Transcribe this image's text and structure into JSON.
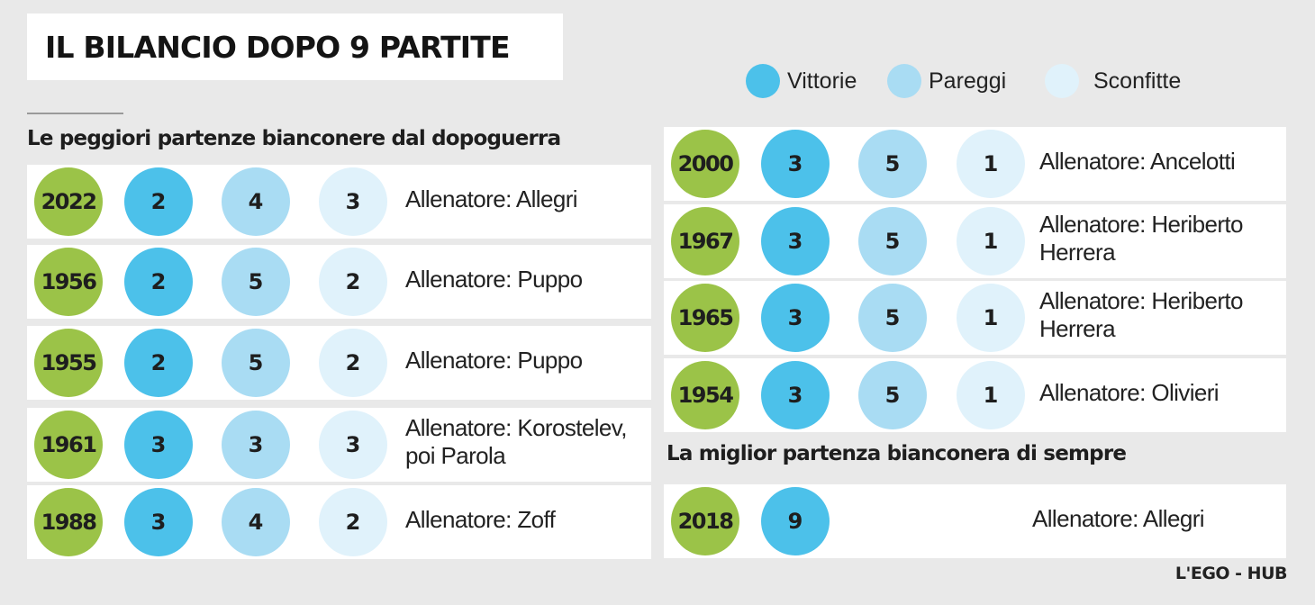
{
  "title": "IL BILANCIO DOPO 9 PARTITE",
  "credit": "L'EGO - HUB",
  "colors": {
    "wins": "#4cc1ea",
    "draws": "#a9dcf3",
    "losses": "#e0f2fb",
    "year": "#9bc348",
    "row": "#ffffff",
    "background": "#e9e9e9"
  },
  "legend": {
    "wins": "Vittorie",
    "draws": "Pareggi",
    "losses": "Sconfitte"
  },
  "sections": {
    "worst": "Le peggiori partenze bianconere dal dopoguerra",
    "best": "La miglior partenza bianconera di sempre"
  },
  "chart_data": {
    "type": "table",
    "title": "IL BILANCIO DOPO 9 PARTITE",
    "columns": [
      "Vittorie",
      "Pareggi",
      "Sconfitte"
    ],
    "worst_starts": [
      {
        "year": "2022",
        "wins": "2",
        "draws": "4",
        "losses": "3",
        "coach": [
          "Allenatore: Allegri"
        ]
      },
      {
        "year": "1956",
        "wins": "2",
        "draws": "5",
        "losses": "2",
        "coach": [
          "Allenatore: Puppo"
        ]
      },
      {
        "year": "1955",
        "wins": "2",
        "draws": "5",
        "losses": "2",
        "coach": [
          "Allenatore: Puppo"
        ]
      },
      {
        "year": "1961",
        "wins": "3",
        "draws": "3",
        "losses": "3",
        "coach": [
          "Allenatore: Korostelev,",
          "poi Parola"
        ]
      },
      {
        "year": "1988",
        "wins": "3",
        "draws": "4",
        "losses": "2",
        "coach": [
          "Allenatore: Zoff"
        ]
      },
      {
        "year": "2000",
        "wins": "3",
        "draws": "5",
        "losses": "1",
        "coach": [
          "Allenatore: Ancelotti"
        ]
      },
      {
        "year": "1967",
        "wins": "3",
        "draws": "5",
        "losses": "1",
        "coach": [
          "Allenatore: Heriberto",
          "Herrera"
        ]
      },
      {
        "year": "1965",
        "wins": "3",
        "draws": "5",
        "losses": "1",
        "coach": [
          "Allenatore: Heriberto",
          "Herrera"
        ]
      },
      {
        "year": "1954",
        "wins": "3",
        "draws": "5",
        "losses": "1",
        "coach": [
          "Allenatore: Olivieri"
        ]
      }
    ],
    "best_start": [
      {
        "year": "2018",
        "wins": "9",
        "draws": "",
        "losses": "",
        "coach": [
          "Allenatore: Allegri"
        ]
      }
    ]
  }
}
